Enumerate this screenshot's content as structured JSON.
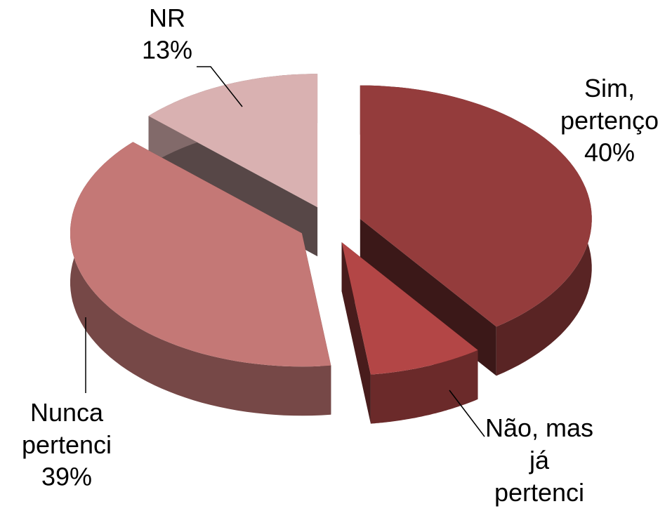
{
  "chart_data": {
    "type": "pie3d",
    "categories": [
      "Sim,\npertenço",
      "Não, mas\njá\npertenci",
      "Nunca\npertenci",
      "NR"
    ],
    "values": [
      40,
      8,
      39,
      13
    ],
    "value_labels": [
      "40%",
      null,
      "39%",
      "13%"
    ],
    "colors": [
      "#943c3c",
      "#b34646",
      "#c47876",
      "#d9b1b1"
    ]
  }
}
